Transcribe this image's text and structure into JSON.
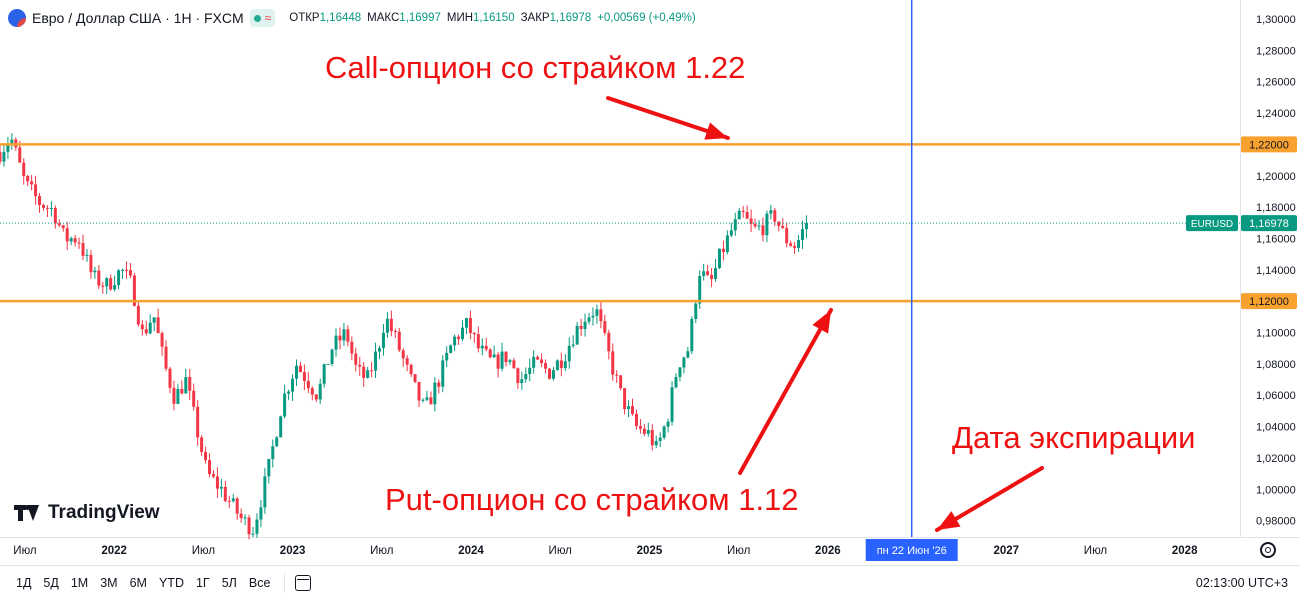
{
  "header": {
    "pair": "Евро / Доллар США · 1H · FXCM",
    "badge_symbol": "≈",
    "ohlc": [
      {
        "label": "ОТКР",
        "value": "1,16448"
      },
      {
        "label": "МАКС",
        "value": "1,16997"
      },
      {
        "label": "МИН",
        "value": "1,16150"
      },
      {
        "label": "ЗАКР",
        "value": "1,16978"
      },
      {
        "label": "",
        "value": "+0,00569 (+0,49%)"
      }
    ]
  },
  "annotations": {
    "call": "Call-опцион со страйком 1.22",
    "put": "Put-опцион со страйком 1.12",
    "expiry": "Дата экспирации"
  },
  "logo_text": "TradingView",
  "colors": {
    "up": "#089981",
    "down": "#f23645",
    "level": "#f9a12e",
    "expiry_line": "#2962ff",
    "annotation": "#ee1111"
  },
  "bottom_bar": {
    "ranges": [
      "1Д",
      "5Д",
      "1М",
      "3М",
      "6М",
      "YTD",
      "1Г",
      "5Л",
      "Все"
    ],
    "clock": "02:13:00 UTC+3"
  },
  "chart_data": {
    "type": "candlestick",
    "symbol_tag": "EURUSD",
    "last_price": 1.16978,
    "last_price_label": "1,16978",
    "ylim": [
      0.97,
      1.3
    ],
    "y_ticks": [
      {
        "value": 1.3,
        "label": "1,30000"
      },
      {
        "value": 1.28,
        "label": "1,28000"
      },
      {
        "value": 1.26,
        "label": "1,26000"
      },
      {
        "value": 1.24,
        "label": "1,24000"
      },
      {
        "value": 1.2,
        "label": "1,20000"
      },
      {
        "value": 1.18,
        "label": "1,18000"
      },
      {
        "value": 1.16,
        "label": "1,16000"
      },
      {
        "value": 1.14,
        "label": "1,14000"
      },
      {
        "value": 1.1,
        "label": "1,10000"
      },
      {
        "value": 1.08,
        "label": "1,08000"
      },
      {
        "value": 1.06,
        "label": "1,06000"
      },
      {
        "value": 1.04,
        "label": "1,04000"
      },
      {
        "value": 1.02,
        "label": "1,02000"
      },
      {
        "value": 1.0,
        "label": "1,00000"
      },
      {
        "value": 0.98,
        "label": "0,98000"
      }
    ],
    "x_ticks": [
      {
        "t": 2021.5,
        "label": "Июл",
        "bold": false
      },
      {
        "t": 2022.0,
        "label": "2022",
        "bold": true
      },
      {
        "t": 2022.5,
        "label": "Июл",
        "bold": false
      },
      {
        "t": 2023.0,
        "label": "2023",
        "bold": true
      },
      {
        "t": 2023.5,
        "label": "Июл",
        "bold": false
      },
      {
        "t": 2024.0,
        "label": "2024",
        "bold": true
      },
      {
        "t": 2024.5,
        "label": "Июл",
        "bold": false
      },
      {
        "t": 2025.0,
        "label": "2025",
        "bold": true
      },
      {
        "t": 2025.5,
        "label": "Июл",
        "bold": false
      },
      {
        "t": 2026.0,
        "label": "2026",
        "bold": true
      },
      {
        "t": 2027.0,
        "label": "2027",
        "bold": true
      },
      {
        "t": 2027.5,
        "label": "Июл",
        "bold": false
      },
      {
        "t": 2028.0,
        "label": "2028",
        "bold": true
      }
    ],
    "xlim": [
      2021.36,
      2028.31
    ],
    "levels": [
      {
        "value": 1.22,
        "label": "1,22000"
      },
      {
        "value": 1.12,
        "label": "1,12000"
      }
    ],
    "expiry": {
      "t": 2026.47,
      "label": "пн 22 Июн '26"
    },
    "price_path": [
      [
        2021.36,
        1.215
      ],
      [
        2021.42,
        1.225
      ],
      [
        2021.5,
        1.195
      ],
      [
        2021.58,
        1.183
      ],
      [
        2021.66,
        1.178
      ],
      [
        2021.72,
        1.16
      ],
      [
        2021.8,
        1.16
      ],
      [
        2021.88,
        1.135
      ],
      [
        2021.96,
        1.13
      ],
      [
        2022.04,
        1.14
      ],
      [
        2022.1,
        1.13
      ],
      [
        2022.16,
        1.098
      ],
      [
        2022.22,
        1.112
      ],
      [
        2022.28,
        1.08
      ],
      [
        2022.34,
        1.058
      ],
      [
        2022.4,
        1.07
      ],
      [
        2022.46,
        1.04
      ],
      [
        2022.52,
        1.01
      ],
      [
        2022.6,
        1.0
      ],
      [
        2022.66,
        0.99
      ],
      [
        2022.72,
        0.98
      ],
      [
        2022.78,
        0.975
      ],
      [
        2022.86,
        1.01
      ],
      [
        2022.94,
        1.055
      ],
      [
        2023.02,
        1.08
      ],
      [
        2023.08,
        1.07
      ],
      [
        2023.14,
        1.06
      ],
      [
        2023.22,
        1.09
      ],
      [
        2023.3,
        1.1
      ],
      [
        2023.36,
        1.075
      ],
      [
        2023.42,
        1.07
      ],
      [
        2023.48,
        1.09
      ],
      [
        2023.52,
        1.11
      ],
      [
        2023.58,
        1.095
      ],
      [
        2023.66,
        1.07
      ],
      [
        2023.74,
        1.05
      ],
      [
        2023.82,
        1.07
      ],
      [
        2023.9,
        1.095
      ],
      [
        2023.98,
        1.105
      ],
      [
        2024.04,
        1.09
      ],
      [
        2024.12,
        1.08
      ],
      [
        2024.2,
        1.085
      ],
      [
        2024.28,
        1.07
      ],
      [
        2024.36,
        1.08
      ],
      [
        2024.44,
        1.075
      ],
      [
        2024.52,
        1.085
      ],
      [
        2024.58,
        1.1
      ],
      [
        2024.64,
        1.11
      ],
      [
        2024.7,
        1.115
      ],
      [
        2024.76,
        1.09
      ],
      [
        2024.84,
        1.06
      ],
      [
        2024.92,
        1.04
      ],
      [
        2025.0,
        1.035
      ],
      [
        2025.04,
        1.025
      ],
      [
        2025.1,
        1.045
      ],
      [
        2025.16,
        1.08
      ],
      [
        2025.22,
        1.09
      ],
      [
        2025.28,
        1.14
      ],
      [
        2025.34,
        1.13
      ],
      [
        2025.4,
        1.15
      ],
      [
        2025.46,
        1.165
      ],
      [
        2025.52,
        1.175
      ],
      [
        2025.58,
        1.165
      ],
      [
        2025.64,
        1.168
      ],
      [
        2025.7,
        1.175
      ],
      [
        2025.76,
        1.16
      ],
      [
        2025.82,
        1.155
      ],
      [
        2025.88,
        1.17
      ]
    ]
  }
}
